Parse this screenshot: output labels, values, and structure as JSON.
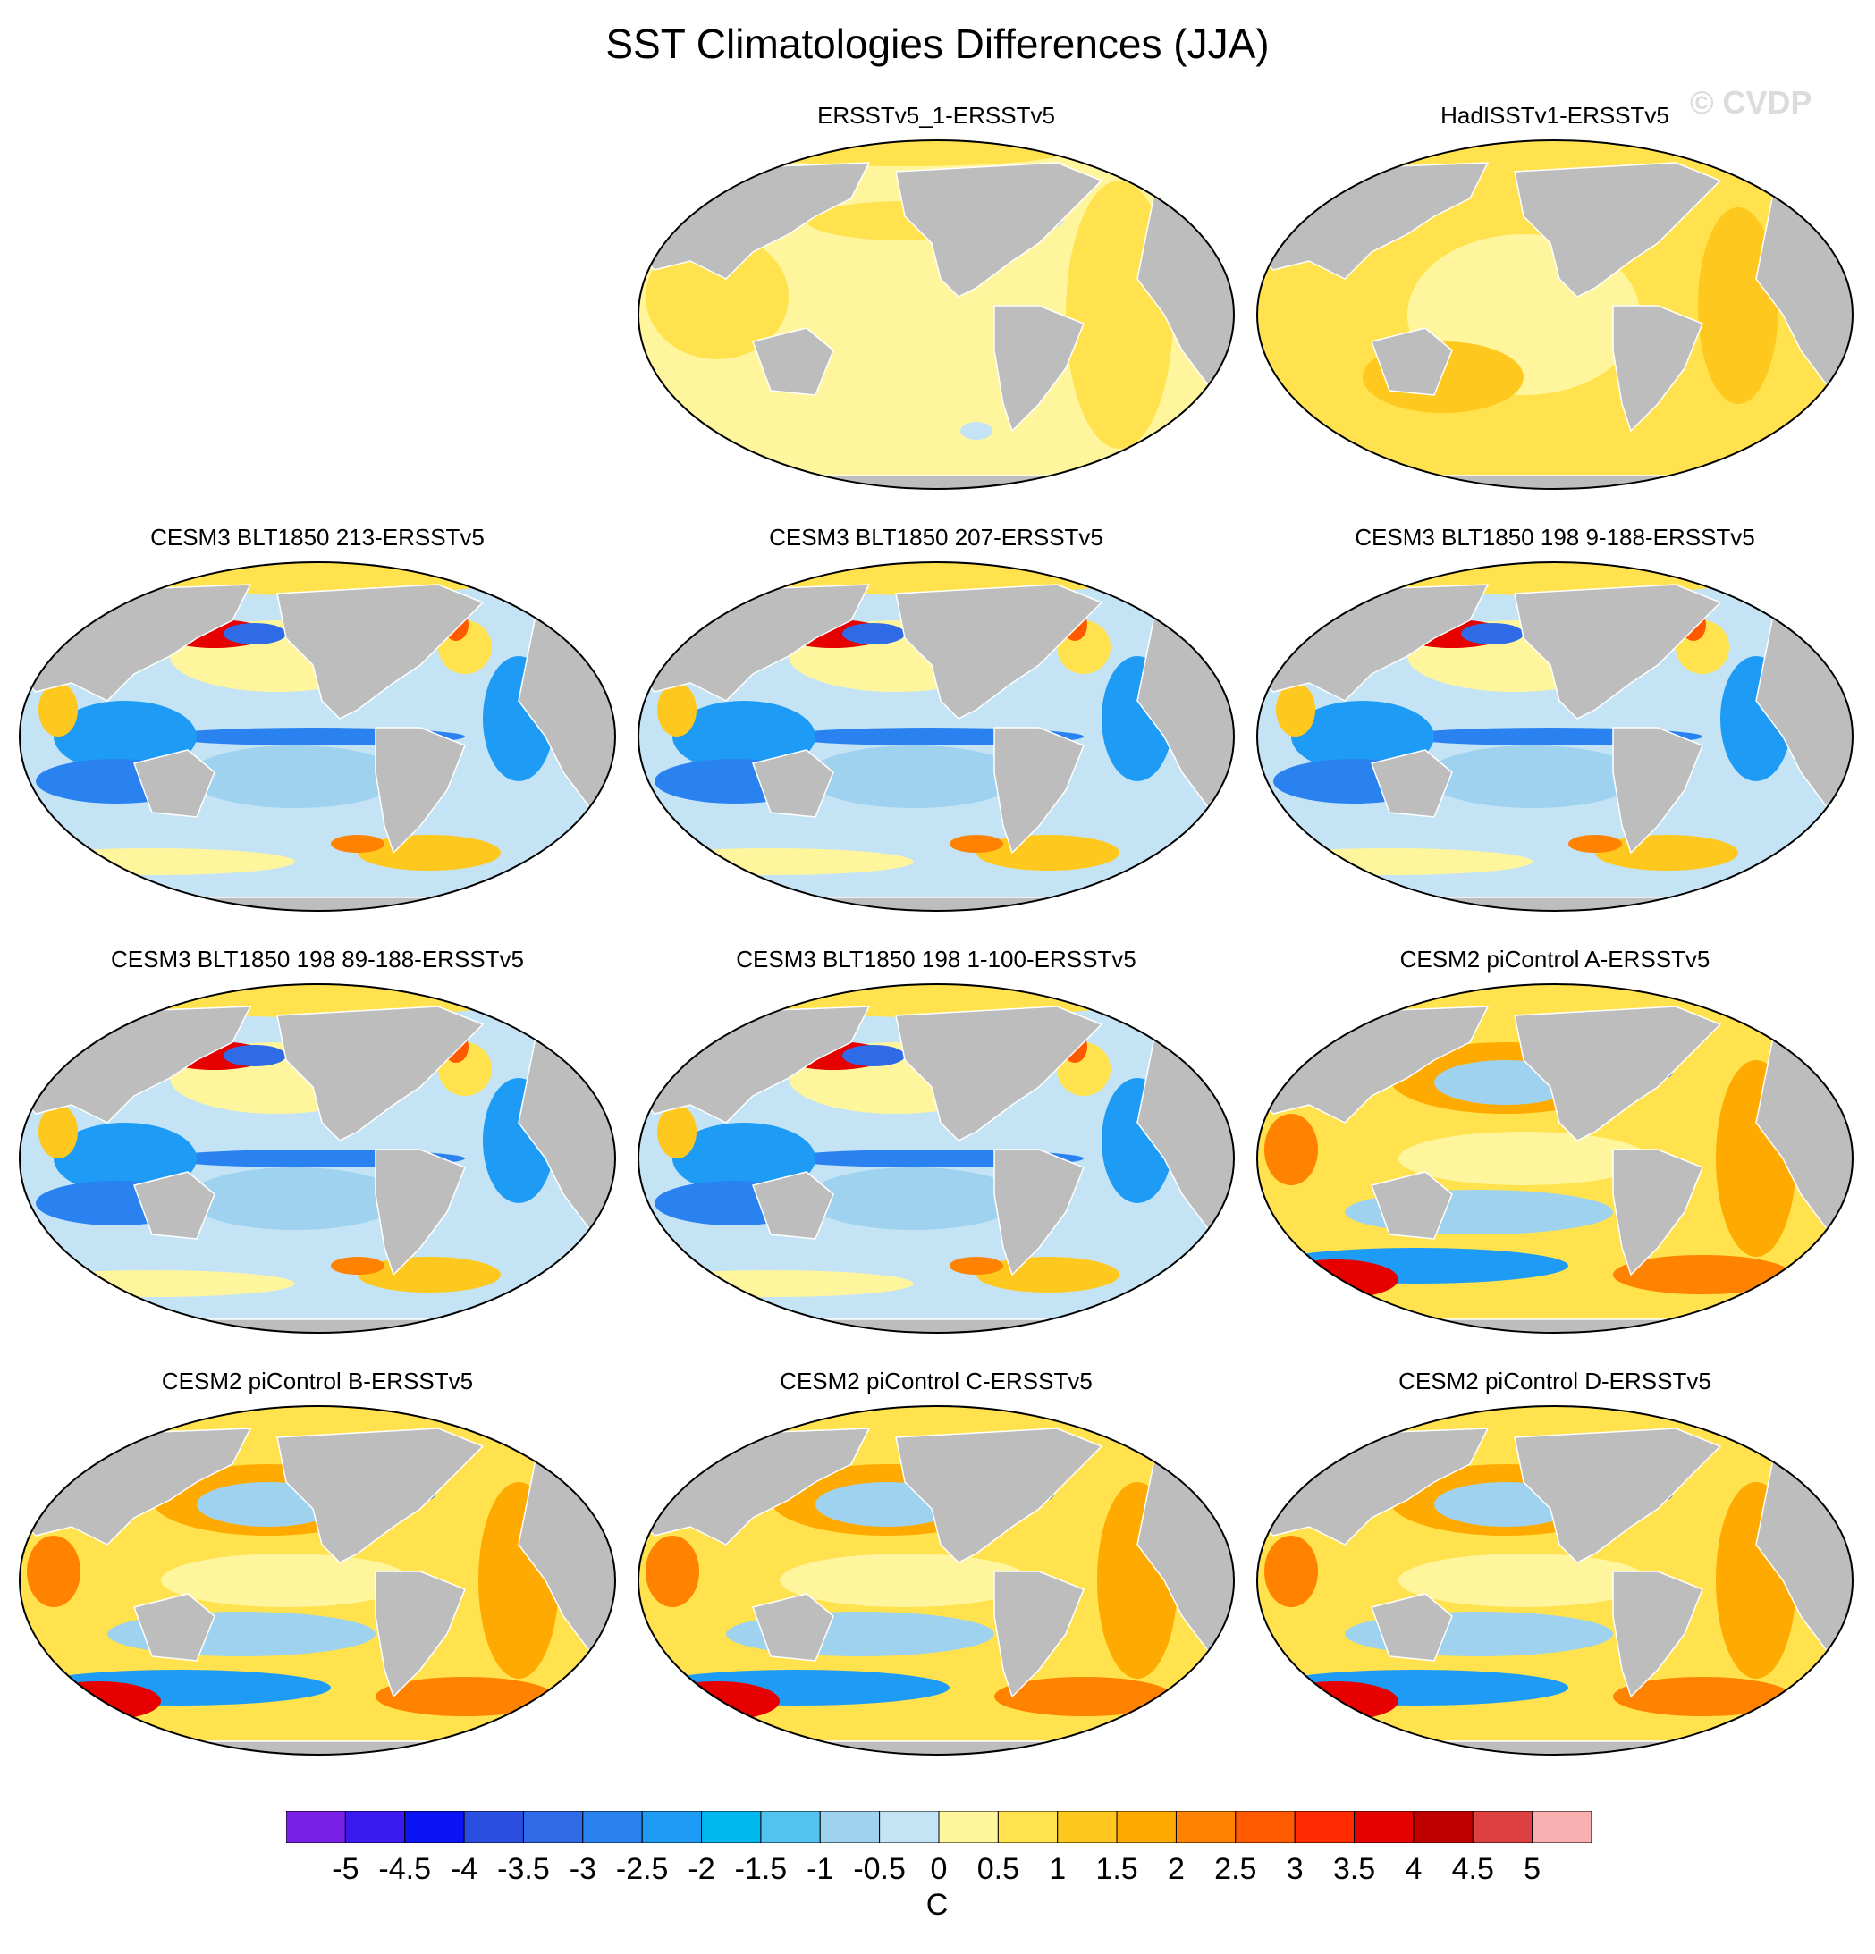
{
  "title": "SST Climatologies Differences (JJA)",
  "watermark": "© CVDP",
  "panels": [
    {
      "title": "ERSSTv5_1-ERSSTv5",
      "pattern": "obs1",
      "row": 0,
      "col": 1
    },
    {
      "title": "HadISSTv1-ERSSTv5",
      "pattern": "obs2",
      "row": 0,
      "col": 2
    },
    {
      "title": "CESM3 BLT1850 213-ERSSTv5",
      "pattern": "cesm3",
      "row": 1,
      "col": 0
    },
    {
      "title": "CESM3 BLT1850 207-ERSSTv5",
      "pattern": "cesm3",
      "row": 1,
      "col": 1
    },
    {
      "title": "CESM3 BLT1850 198 9-188-ERSSTv5",
      "pattern": "cesm3",
      "row": 1,
      "col": 2
    },
    {
      "title": "CESM3 BLT1850 198 89-188-ERSSTv5",
      "pattern": "cesm3",
      "row": 2,
      "col": 0
    },
    {
      "title": "CESM3 BLT1850 198 1-100-ERSSTv5",
      "pattern": "cesm3",
      "row": 2,
      "col": 1
    },
    {
      "title": "CESM2 piControl A-ERSSTv5",
      "pattern": "cesm2",
      "row": 2,
      "col": 2
    },
    {
      "title": "CESM2 piControl B-ERSSTv5",
      "pattern": "cesm2",
      "row": 3,
      "col": 0
    },
    {
      "title": "CESM2 piControl C-ERSSTv5",
      "pattern": "cesm2",
      "row": 3,
      "col": 1
    },
    {
      "title": "CESM2 piControl D-ERSSTv5",
      "pattern": "cesm2",
      "row": 3,
      "col": 2
    }
  ],
  "colorbar": {
    "unit": "C",
    "labels": [
      "-5",
      "-4.5",
      "-4",
      "-3.5",
      "-3",
      "-2.5",
      "-2",
      "-1.5",
      "-1",
      "-0.5",
      "0",
      "0.5",
      "1",
      "1.5",
      "2",
      "2.5",
      "3",
      "3.5",
      "4",
      "4.5",
      "5"
    ],
    "colors": [
      "#7a1fe6",
      "#3a1af0",
      "#0a14f5",
      "#2a4fe0",
      "#2f6be6",
      "#2a82f0",
      "#1e9cf5",
      "#00b8f0",
      "#52c2ee",
      "#9fd2ee",
      "#c4e4f6",
      "#fff59c",
      "#ffe24d",
      "#ffc81e",
      "#ffaa00",
      "#ff8200",
      "#ff5a00",
      "#ff2a00",
      "#e60000",
      "#c00000",
      "#dc4040",
      "#f8b0b0"
    ]
  },
  "palette": {
    "land": "#bdbdbd",
    "warm1": "#fff59c",
    "warm2": "#ffe24d",
    "warm3": "#ffc81e",
    "warm4": "#ffaa00",
    "warm5": "#ff8200",
    "warm6": "#ff5a00",
    "warm7": "#e60000",
    "warm8": "#c00000",
    "cool1": "#c4e4f6",
    "cool2": "#9fd2ee",
    "cool3": "#52c2ee",
    "cool4": "#1e9cf5",
    "cool5": "#2a82f0",
    "cool6": "#2f6be6",
    "cool7": "#0a14f5"
  }
}
